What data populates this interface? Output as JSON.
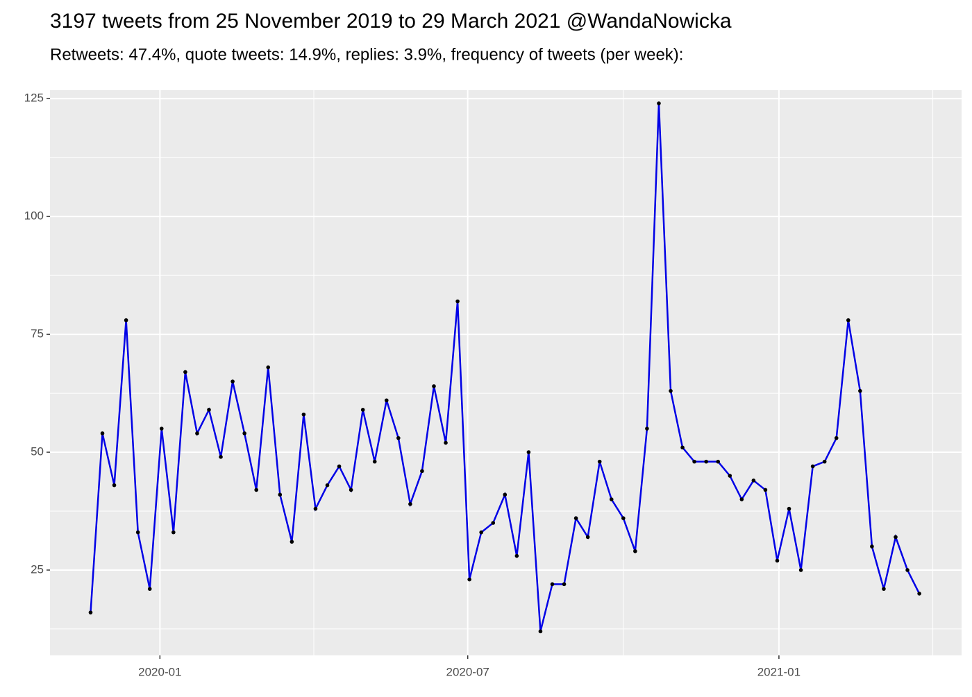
{
  "chart_data": {
    "type": "line",
    "title": "3197 tweets from 25 November 2019 to 29 March 2021 @WandaNowicka",
    "subtitle": "Retweets: 47.4%, quote tweets: 14.9%, replies: 3.9%, frequency of tweets (per week):",
    "x": [
      "2019-11-21",
      "2019-11-28",
      "2019-12-05",
      "2019-12-12",
      "2019-12-19",
      "2019-12-26",
      "2020-01-02",
      "2020-01-09",
      "2020-01-16",
      "2020-01-23",
      "2020-01-30",
      "2020-02-06",
      "2020-02-13",
      "2020-02-20",
      "2020-02-27",
      "2020-03-05",
      "2020-03-12",
      "2020-03-19",
      "2020-03-26",
      "2020-04-02",
      "2020-04-09",
      "2020-04-16",
      "2020-04-23",
      "2020-04-30",
      "2020-05-07",
      "2020-05-14",
      "2020-05-21",
      "2020-05-28",
      "2020-06-04",
      "2020-06-11",
      "2020-06-18",
      "2020-06-25",
      "2020-07-02",
      "2020-07-09",
      "2020-07-16",
      "2020-07-23",
      "2020-07-30",
      "2020-08-06",
      "2020-08-13",
      "2020-08-20",
      "2020-08-27",
      "2020-09-03",
      "2020-09-10",
      "2020-09-17",
      "2020-09-24",
      "2020-10-01",
      "2020-10-08",
      "2020-10-15",
      "2020-10-22",
      "2020-10-29",
      "2020-11-05",
      "2020-11-12",
      "2020-11-19",
      "2020-11-26",
      "2020-12-03",
      "2020-12-10",
      "2020-12-17",
      "2020-12-24",
      "2020-12-31",
      "2021-01-07",
      "2021-01-14",
      "2021-01-21",
      "2021-01-28",
      "2021-02-04",
      "2021-02-11",
      "2021-02-18",
      "2021-02-25",
      "2021-03-04",
      "2021-03-11",
      "2021-03-18",
      "2021-03-25"
    ],
    "series": [
      {
        "color": "#0000e6",
        "values": [
          16,
          54,
          43,
          78,
          33,
          21,
          55,
          33,
          67,
          54,
          59,
          49,
          65,
          54,
          42,
          68,
          41,
          31,
          58,
          38,
          43,
          47,
          42,
          59,
          48,
          61,
          53,
          39,
          46,
          64,
          52,
          82,
          23,
          33,
          35,
          41,
          28,
          50,
          12,
          22,
          22,
          36,
          32,
          48,
          40,
          36,
          29,
          55,
          124,
          63,
          51,
          48,
          48,
          48,
          45,
          40,
          44,
          42,
          27,
          38,
          25,
          47,
          48,
          53,
          78,
          63,
          30,
          21,
          32,
          25,
          20
        ]
      }
    ],
    "xlim": [
      "2019-10-28",
      "2021-04-19"
    ],
    "xticks": [
      {
        "value": "2020-01-01",
        "label": "2020-01"
      },
      {
        "value": "2020-07-01",
        "label": "2020-07"
      },
      {
        "value": "2021-01-01",
        "label": "2021-01"
      }
    ],
    "ylim": [
      6.9,
      126.8
    ],
    "yticks": [
      25,
      50,
      75,
      100,
      125
    ],
    "grid": true
  }
}
